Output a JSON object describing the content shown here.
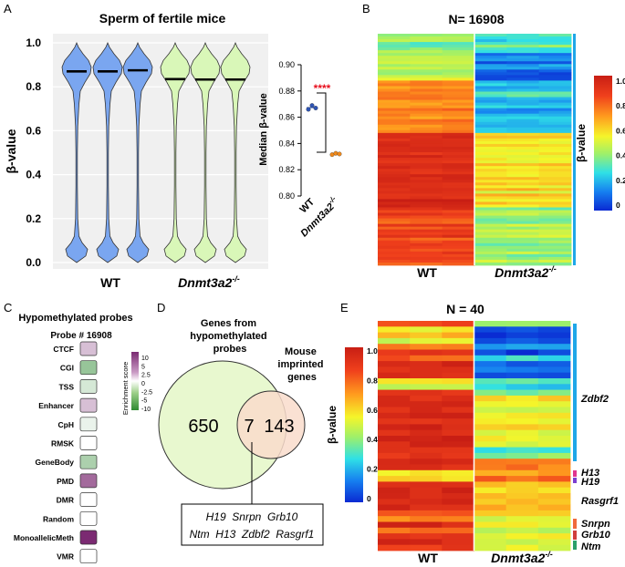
{
  "panel_letters": {
    "a": "A",
    "b": "B",
    "c": "C",
    "d": "D",
    "e": "E"
  },
  "panel_a": {
    "title": "Sperm of fertile mice",
    "ylabel": "β-value",
    "yticks": [
      "0.0",
      "0.2",
      "0.4",
      "0.6",
      "0.8",
      "1.0"
    ],
    "groups": [
      {
        "label": "WT",
        "medians": [
          0.87,
          0.87,
          0.875
        ],
        "color": "#7aa6f0"
      },
      {
        "label": "Dnmt3a2",
        "sup": "-/-",
        "medians": [
          0.835,
          0.833,
          0.833
        ],
        "color": "#d9f7b8"
      }
    ]
  },
  "panel_a_inset": {
    "ylabel": "Median β-value",
    "yticks": [
      "0.80",
      "0.82",
      "0.84",
      "0.86",
      "0.88",
      "0.90"
    ],
    "ylim": [
      0.8,
      0.9
    ],
    "groups": [
      {
        "label": "WT",
        "values": [
          0.866,
          0.869,
          0.867
        ],
        "color": "#2f55b5"
      },
      {
        "label": "Dnmt3a2",
        "sup": "-/-",
        "values": [
          0.8315,
          0.8325,
          0.832
        ],
        "color": "#f08a1c"
      }
    ],
    "significance": "****"
  },
  "panel_b": {
    "title": "N= 16908",
    "xlabels": [
      {
        "text": "WT",
        "sup": ""
      },
      {
        "text": "Dnmt3a2",
        "sup": "-/-"
      }
    ],
    "colorbar_label": "β-value",
    "colorbar_ticks": [
      "1.0",
      "0.8",
      "0.6",
      "0.4",
      "0.2",
      "0"
    ]
  },
  "panel_c": {
    "title": "Hypomethylated probes",
    "subtitle": "Probe # 16908",
    "features": [
      "CTCF",
      "CGI",
      "TSS",
      "Enhancer",
      "CpH",
      "RMSK",
      "GeneBody",
      "PMD",
      "DMR",
      "Random",
      "MonoallelicMeth",
      "VMR"
    ],
    "scores": [
      3,
      -5,
      -2,
      3,
      -1,
      0,
      -4,
      7,
      0,
      0,
      10,
      0
    ],
    "legend_label": "Enrichment score",
    "legend_ticks": [
      "10",
      "5",
      "2.5",
      "0",
      "-2.5",
      "-5",
      "-10"
    ]
  },
  "panel_d": {
    "left_label": "Genes from hypomethylated probes",
    "right_label": "Mouse imprinted genes",
    "left_only": "650",
    "overlap": "7",
    "right_only": "143",
    "overlap_genes_line1": "H19  Snrpn  Grb10",
    "overlap_genes_line2": "Ntm  H13  Zdbf2  Rasgrf1"
  },
  "panel_e": {
    "title": "N = 40",
    "xlabels": [
      {
        "text": "WT",
        "sup": ""
      },
      {
        "text": "Dnmt3a2",
        "sup": "-/-"
      }
    ],
    "colorbar_label": "β-value",
    "colorbar_ticks": [
      "1.0",
      "0.8",
      "0.6",
      "0.4",
      "0.2",
      "0"
    ],
    "gene_labels": [
      "Zdbf2",
      "H13",
      "H19",
      "Rasgrf1",
      "Snrpn",
      "Grb10",
      "Ntm"
    ],
    "gene_colors": [
      "#1ea7e8",
      "#e0358f",
      "#7b3fd0",
      "#ffffff",
      "#f06a3c",
      "#d0403c",
      "#2aa06a"
    ]
  }
}
